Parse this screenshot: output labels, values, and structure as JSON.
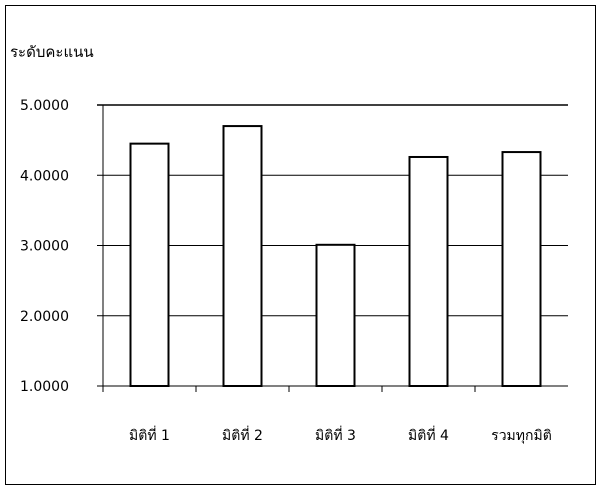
{
  "chart_data": {
    "type": "bar",
    "title": "",
    "xlabel": "",
    "ylabel": "ระดับคะแนน",
    "categories": [
      "มิติที่ 1",
      "มิติที่ 2",
      "มิติที่ 3",
      "มิติที่ 4",
      "รวมทุกมิติ"
    ],
    "values": [
      4.45,
      4.7,
      3.01,
      4.26,
      4.33
    ],
    "ylim": [
      1.0,
      5.0
    ],
    "yticks": [
      "1.0000",
      "2.0000",
      "3.0000",
      "4.0000",
      "5.0000"
    ],
    "grid": true,
    "legend": "none",
    "bar_fill": "#ffffff",
    "bar_stroke": "#000000"
  }
}
